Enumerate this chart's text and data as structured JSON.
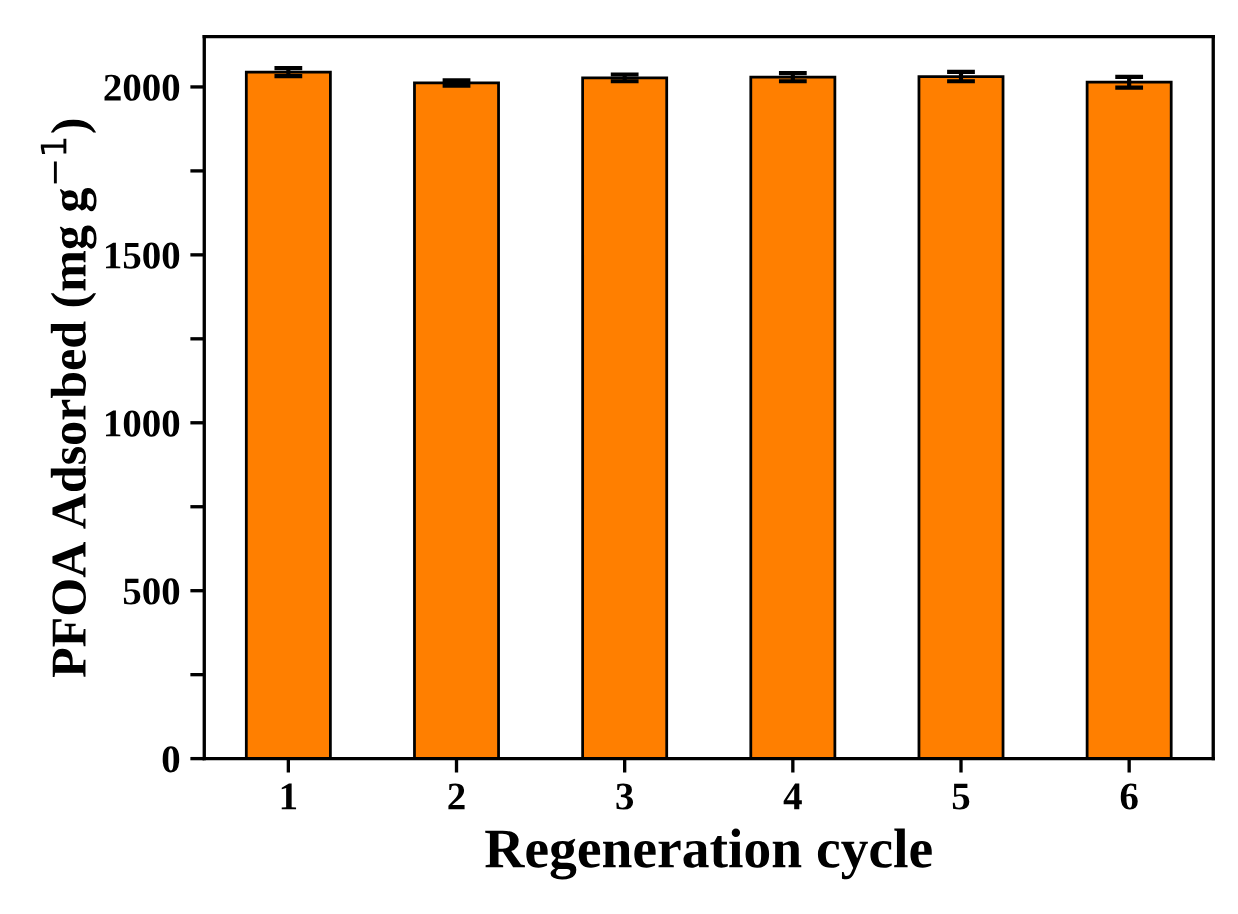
{
  "chart_data": {
    "type": "bar",
    "xlabel": "Regeneration cycle",
    "ylabel": "PFOA Adsorbed (mg g$^{−1}$)",
    "categories": [
      "1",
      "2",
      "3",
      "4",
      "5",
      "6"
    ],
    "values": [
      2044,
      2012,
      2027,
      2029,
      2031,
      2014
    ],
    "errors": [
      12,
      8,
      10,
      12,
      14,
      16
    ],
    "color": "#ff7f00",
    "ylim": [
      0,
      2150
    ],
    "yticks": [
      0,
      {
        "value": 250,
        "label": null
      },
      500,
      {
        "value": 750,
        "label": null
      },
      1000,
      {
        "value": 1250,
        "label": null
      },
      1500,
      {
        "value": 1750,
        "label": null
      },
      2000
    ],
    "grid": false,
    "legend": false
  }
}
